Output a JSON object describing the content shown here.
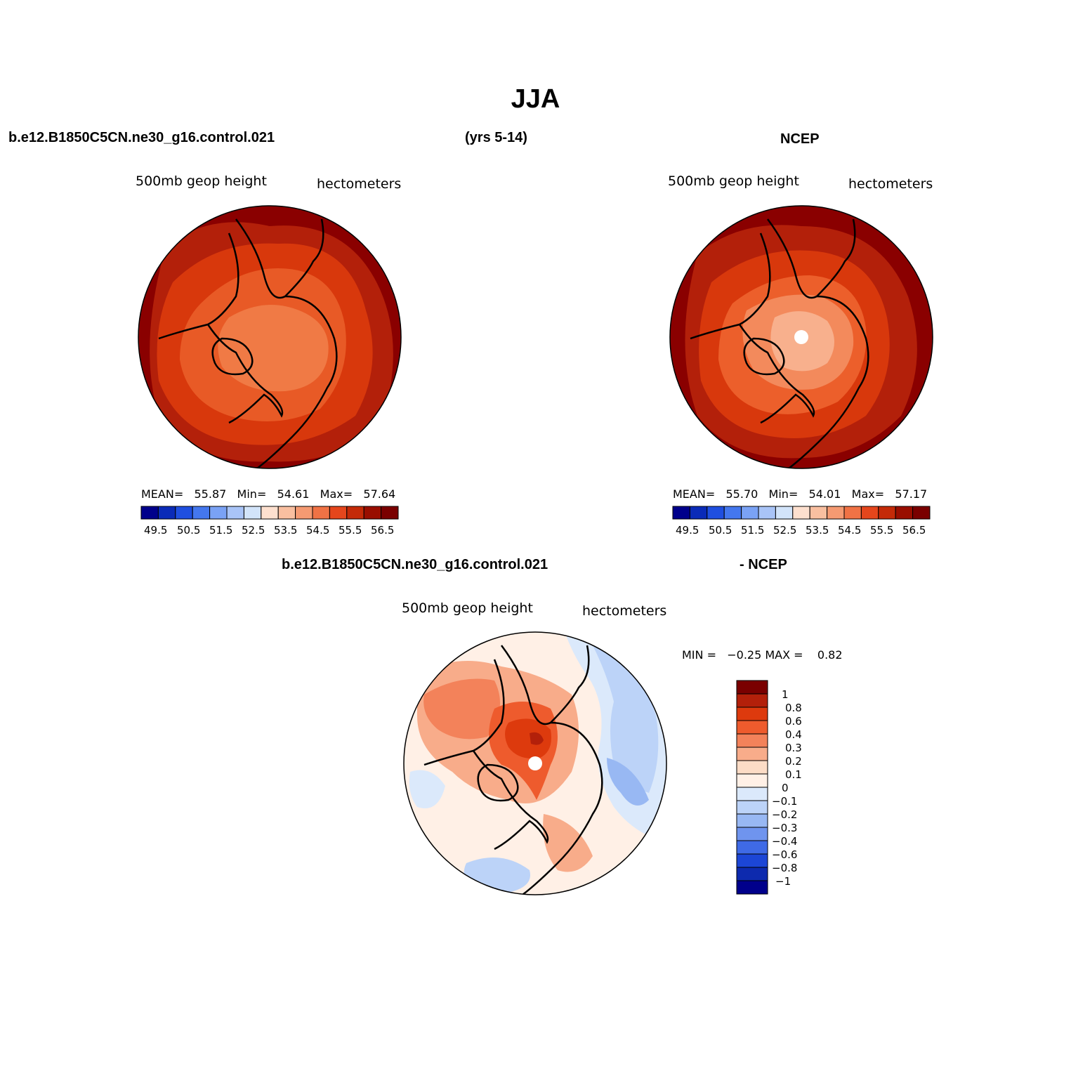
{
  "title": "JJA",
  "panel_left": {
    "case_label": "b.e12.B1850C5CN.ne30_g16.control.021",
    "period_label": "(yrs 5-14)",
    "var_label": "500mb geop height",
    "units_label": "hectometers",
    "mean_text": "MEAN=   55.87   Min=   54.61   Max=   57.64",
    "colorbar_ticks": [
      "49.5",
      "50.5",
      "51.5",
      "52.5",
      "53.5",
      "54.5",
      "55.5",
      "56.5"
    ]
  },
  "panel_right": {
    "case_label": "NCEP",
    "var_label": "500mb geop height",
    "units_label": "hectometers",
    "mean_text": "MEAN=   55.70   Min=   54.01   Max=   57.17",
    "colorbar_ticks": [
      "49.5",
      "50.5",
      "51.5",
      "52.5",
      "53.5",
      "54.5",
      "55.5",
      "56.5"
    ]
  },
  "panel_diff": {
    "case_label": "b.e12.B1850C5CN.ne30_g16.control.021",
    "ref_label": "- NCEP",
    "var_label": "500mb geop height",
    "units_label": "hectometers",
    "minmax_text": "MIN =   −0.25 MAX =    0.82",
    "colorbar_ticks": [
      "1",
      "0.8",
      "0.6",
      "0.4",
      "0.3",
      "0.2",
      "0.1",
      "0",
      "−0.1",
      "−0.2",
      "−0.3",
      "−0.4",
      "−0.6",
      "−0.8",
      "−1"
    ]
  },
  "colors": {
    "abs_scale": [
      "#00008b",
      "#0a2bb8",
      "#1f4fe0",
      "#4477ee",
      "#7aa2f5",
      "#a9c4f7",
      "#d2e4fa",
      "#fde0cf",
      "#f9bfa0",
      "#f59a72",
      "#f07245",
      "#e5461c",
      "#c42a08",
      "#990e00",
      "#7a0000"
    ],
    "diff_scale": [
      "#7a0000",
      "#b3200a",
      "#dd3a0d",
      "#ee5b2d",
      "#f3825a",
      "#f8ac8a",
      "#fcdcc6",
      "#fff0e6",
      "#dbe9fb",
      "#bcd3f8",
      "#98b8f3",
      "#6f94ee",
      "#3f6ae6",
      "#1c46d6",
      "#0d2aae",
      "#00008b"
    ]
  }
}
